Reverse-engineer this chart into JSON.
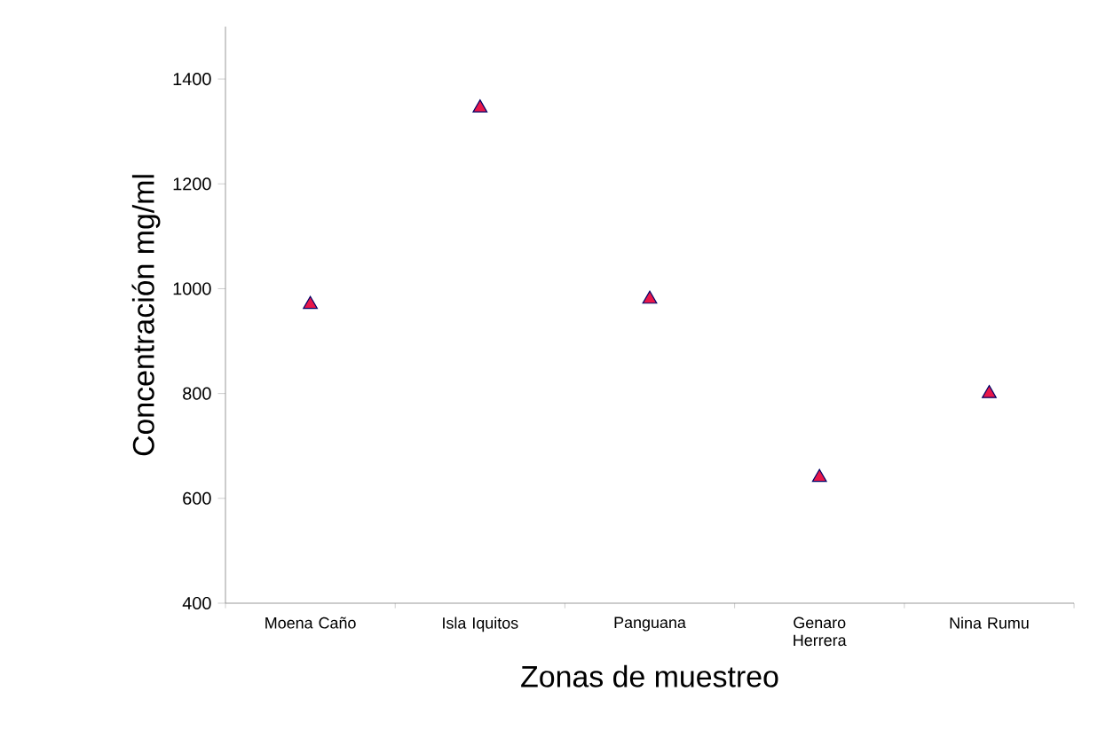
{
  "chart_data": {
    "type": "scatter",
    "xlabel": "Zonas de muestreo",
    "ylabel": "Concentración mg/ml",
    "categories": [
      "Moena Caño",
      "Isla Iquitos",
      "Panguana",
      "Genaro Herrera",
      "Nina Rumu"
    ],
    "values": [
      970,
      1345,
      980,
      640,
      800
    ],
    "color": "#e8174a",
    "marker": "triangle",
    "ylim": [
      400,
      1500
    ],
    "yticks": [
      400,
      600,
      800,
      1000,
      1200,
      1400
    ]
  }
}
